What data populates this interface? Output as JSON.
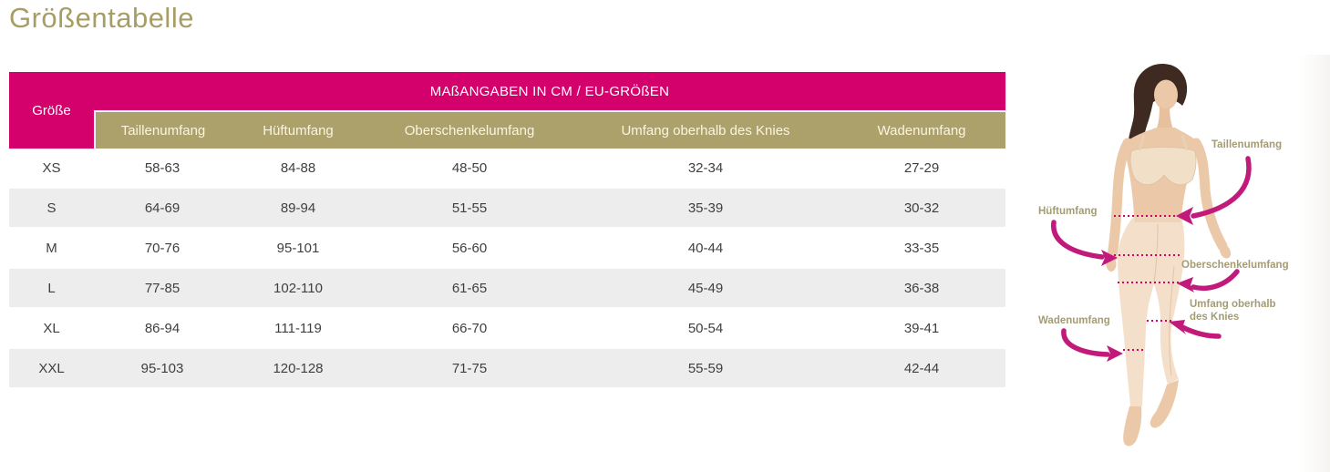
{
  "page": {
    "title": "Größentabelle"
  },
  "table": {
    "caption": "MAßANGABEN IN CM / EU-GRÖßEN",
    "corner_header": "Größe",
    "columns": [
      "Taillenumfang",
      "Hüftumfang",
      "Oberschenkelumfang",
      "Umfang oberhalb des Knies",
      "Wadenumfang"
    ],
    "rows": [
      {
        "size": "XS",
        "values": [
          "58-63",
          "84-88",
          "48-50",
          "32-34",
          "27-29"
        ]
      },
      {
        "size": "S",
        "values": [
          "64-69",
          "89-94",
          "51-55",
          "35-39",
          "30-32"
        ]
      },
      {
        "size": "M",
        "values": [
          "70-76",
          "95-101",
          "56-60",
          "40-44",
          "33-35"
        ]
      },
      {
        "size": "L",
        "values": [
          "77-85",
          "102-110",
          "61-65",
          "45-49",
          "36-38"
        ]
      },
      {
        "size": "XL",
        "values": [
          "86-94",
          "111-119",
          "66-70",
          "50-54",
          "39-41"
        ]
      },
      {
        "size": "XXL",
        "values": [
          "95-103",
          "120-128",
          "71-75",
          "55-59",
          "42-44"
        ]
      }
    ]
  },
  "figure": {
    "labels": [
      {
        "id": "taillenumfang",
        "text": "Taillenumfang"
      },
      {
        "id": "hueftumfang",
        "text": "Hüftumfang"
      },
      {
        "id": "oberschenkelumfang",
        "text": "Oberschenkelumfang"
      },
      {
        "id": "umfang-oberhalb-des-knies",
        "text": "Umfang oberhalb des Knies"
      },
      {
        "id": "wadenumfang",
        "text": "Wadenumfang"
      }
    ]
  },
  "colors": {
    "magenta_header": "#D4006C",
    "olive_header": "#ACA06B",
    "title_olive": "#A79E66",
    "figure_label_olive": "#A49C72",
    "arrow_pink": "#C21A7B",
    "row_alt_gray": "#EDEDED",
    "cell_text": "#3F3F3F"
  }
}
